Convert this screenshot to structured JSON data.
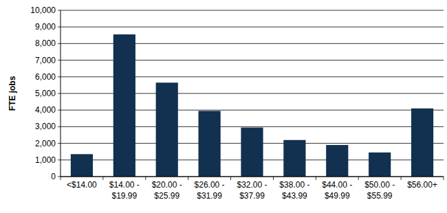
{
  "chart_data": {
    "type": "bar",
    "y_label": "FTE jobs",
    "categories": [
      "<$14.00",
      "$14.00 - $19.99",
      "$20.00 - $25.99",
      "$26.00 - $31.99",
      "$32.00 - $37.99",
      "$38.00 - $43.99",
      "$44.00 - $49.99",
      "$50.00 - $55.99",
      "$56.00+"
    ],
    "values": [
      1350,
      8550,
      5650,
      3950,
      2950,
      2200,
      1900,
      1450,
      4100
    ],
    "color": "#12304f",
    "ylim": [
      0,
      10000
    ],
    "yticks": [
      0,
      {
        "value": 1000,
        "label": "1,000"
      },
      {
        "value": 2000,
        "label": "2,000"
      },
      {
        "value": 3000,
        "label": "3,000"
      },
      {
        "value": 4000,
        "label": "4,000"
      },
      {
        "value": 5000,
        "label": "5,000"
      },
      {
        "value": 6000,
        "label": "6,000"
      },
      {
        "value": 7000,
        "label": "7,000"
      },
      {
        "value": 8000,
        "label": "8,000"
      },
      {
        "value": 9000,
        "label": "9,000"
      },
      {
        "value": 10000,
        "label": "10,000"
      }
    ],
    "grid": true
  }
}
